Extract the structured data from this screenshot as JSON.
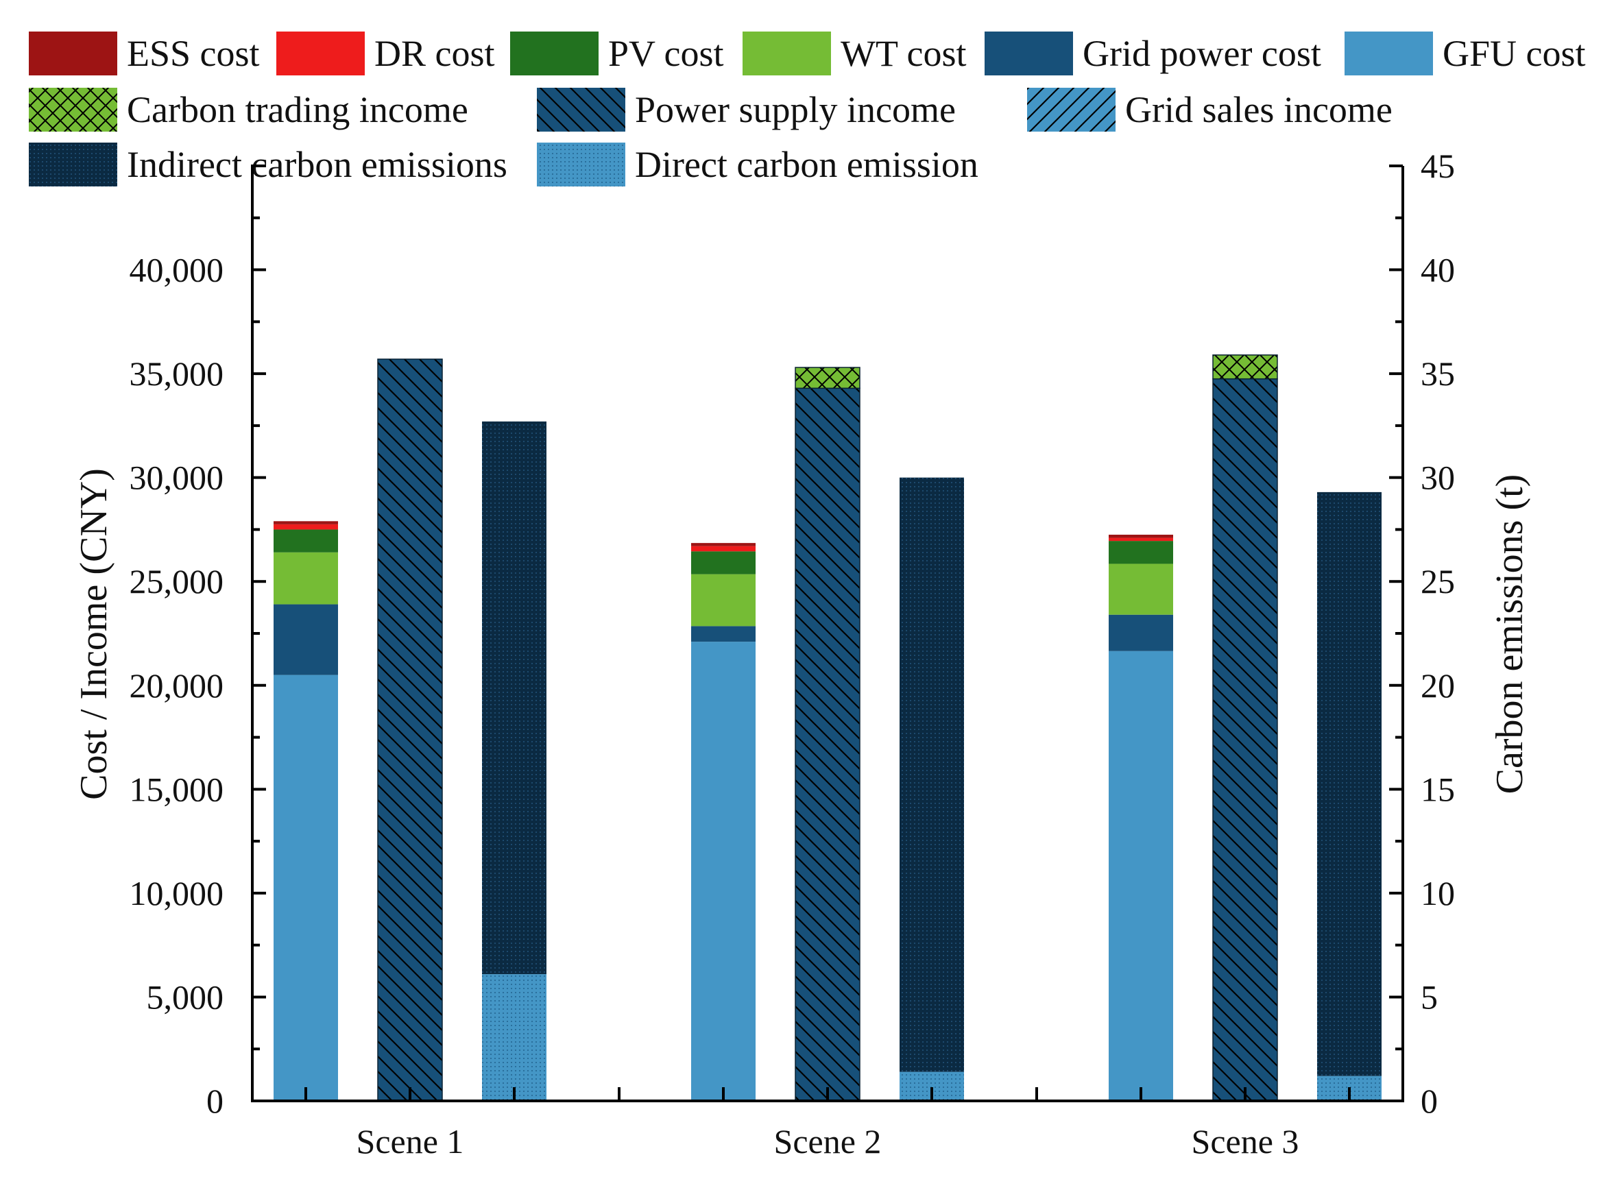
{
  "chart_data": {
    "type": "bar",
    "subtype": "stacked-grouped-dual-axis",
    "categories": [
      "Scene 1",
      "Scene 2",
      "Scene 3"
    ],
    "left_axis": {
      "label": "Cost / Income (CNY)",
      "ylim": [
        0,
        45000
      ],
      "ticks": [
        0,
        5000,
        10000,
        15000,
        20000,
        25000,
        30000,
        35000,
        40000
      ],
      "tick_labels": [
        "0",
        "5,000",
        "10,000",
        "15,000",
        "20,000",
        "25,000",
        "30,000",
        "35,000",
        "40,000"
      ]
    },
    "right_axis": {
      "label": "Carbon emissions (t)",
      "ylim": [
        0,
        45
      ],
      "ticks": [
        0,
        5,
        10,
        15,
        20,
        25,
        30,
        35,
        40,
        45
      ],
      "tick_labels": [
        "0",
        "5",
        "10",
        "15",
        "20",
        "25",
        "30",
        "35",
        "40",
        "45"
      ]
    },
    "cost_series": [
      {
        "name": "GFU cost",
        "values": [
          20500,
          22100,
          21650
        ],
        "color": "#4496c6",
        "pattern": "solid"
      },
      {
        "name": "Grid power cost",
        "values": [
          3400,
          750,
          1750
        ],
        "color": "#175079",
        "pattern": "solid"
      },
      {
        "name": "WT cost",
        "values": [
          2500,
          2500,
          2450
        ],
        "color": "#75bc35",
        "pattern": "solid"
      },
      {
        "name": "PV cost",
        "values": [
          1100,
          1100,
          1100
        ],
        "color": "#22721f",
        "pattern": "solid"
      },
      {
        "name": "DR cost",
        "values": [
          250,
          250,
          150
        ],
        "color": "#ee1c1c",
        "pattern": "solid"
      },
      {
        "name": "ESS cost",
        "values": [
          150,
          150,
          150
        ],
        "color": "#9d1414",
        "pattern": "solid"
      }
    ],
    "income_series": [
      {
        "name": "Grid sales income",
        "values": [
          0,
          0,
          0
        ],
        "color": "#4496c6",
        "pattern": "hatch-forward"
      },
      {
        "name": "Power supply income",
        "values": [
          35700,
          34300,
          34750
        ],
        "color": "#175079",
        "pattern": "hatch-back"
      },
      {
        "name": "Carbon trading income",
        "values": [
          0,
          1000,
          1150
        ],
        "color": "#75bc35",
        "pattern": "crosshatch"
      }
    ],
    "emission_series": [
      {
        "name": "Direct carbon emission",
        "values": [
          6.1,
          1.4,
          1.2
        ],
        "color": "#4496c6",
        "pattern": "dots"
      },
      {
        "name": "Indirect carbon emissions",
        "values": [
          26.6,
          28.6,
          28.1
        ],
        "color": "#0b2a42",
        "pattern": "dense-dots"
      }
    ],
    "legend": {
      "placement": "top",
      "items": [
        {
          "label": "ESS cost",
          "color": "#9d1414",
          "pattern": "solid"
        },
        {
          "label": "DR cost",
          "color": "#ee1c1c",
          "pattern": "solid"
        },
        {
          "label": "PV cost",
          "color": "#22721f",
          "pattern": "solid"
        },
        {
          "label": "WT cost",
          "color": "#75bc35",
          "pattern": "solid"
        },
        {
          "label": "Grid power cost",
          "color": "#175079",
          "pattern": "solid"
        },
        {
          "label": "GFU cost",
          "color": "#4496c6",
          "pattern": "solid"
        },
        {
          "label": "Carbon trading income",
          "color": "#75bc35",
          "pattern": "crosshatch"
        },
        {
          "label": "Power supply income",
          "color": "#175079",
          "pattern": "hatch-back"
        },
        {
          "label": "Grid sales income",
          "color": "#4496c6",
          "pattern": "hatch-forward"
        },
        {
          "label": "Indirect carbon emissions",
          "color": "#0b2a42",
          "pattern": "dense-dots"
        },
        {
          "label": "Direct carbon emission",
          "color": "#4496c6",
          "pattern": "dots"
        }
      ]
    }
  }
}
